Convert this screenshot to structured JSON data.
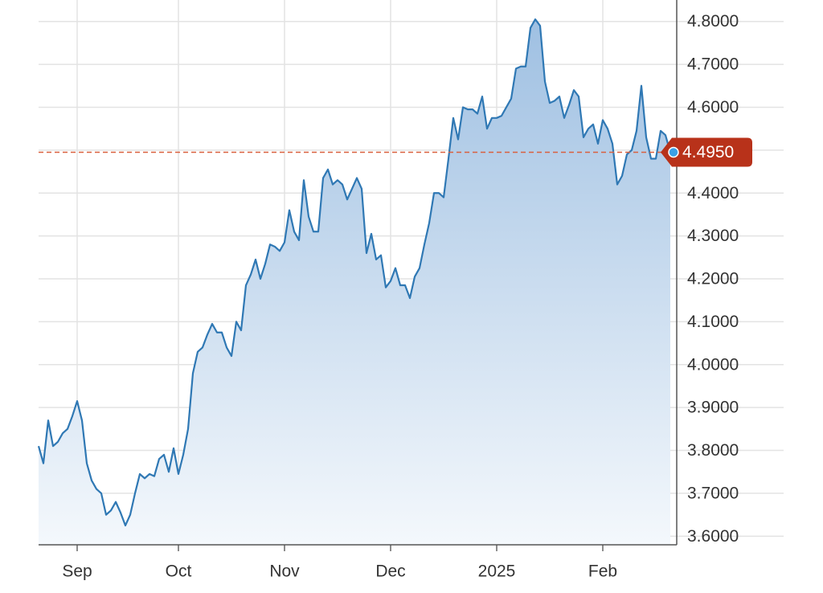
{
  "chart_data": {
    "type": "area",
    "categories": [
      null,
      null,
      null,
      null,
      null,
      null,
      null,
      null,
      "Sep",
      null,
      null,
      null,
      null,
      null,
      null,
      null,
      null,
      null,
      null,
      null,
      null,
      null,
      null,
      null,
      null,
      null,
      null,
      null,
      null,
      "Oct",
      null,
      null,
      null,
      null,
      null,
      null,
      null,
      null,
      null,
      null,
      null,
      null,
      null,
      null,
      null,
      null,
      null,
      null,
      null,
      null,
      null,
      "Nov",
      null,
      null,
      null,
      null,
      null,
      null,
      null,
      null,
      null,
      null,
      null,
      null,
      null,
      null,
      null,
      null,
      null,
      null,
      null,
      null,
      null,
      "Dec",
      null,
      null,
      null,
      null,
      null,
      null,
      null,
      null,
      null,
      null,
      null,
      null,
      null,
      null,
      null,
      null,
      null,
      null,
      null,
      null,
      null,
      "2025",
      null,
      null,
      null,
      null,
      null,
      null,
      null,
      null,
      null,
      null,
      null,
      null,
      null,
      null,
      null,
      null,
      null,
      null,
      null,
      null,
      null,
      "Feb",
      null,
      null,
      null,
      null,
      null,
      null,
      null,
      null,
      null,
      null,
      null,
      null,
      null,
      null
    ],
    "series": [
      {
        "color": "#2f78b4",
        "values": [
          3.81,
          3.77,
          3.87,
          3.81,
          3.82,
          3.84,
          3.85,
          3.88,
          3.915,
          3.87,
          3.77,
          3.73,
          3.71,
          3.7,
          3.65,
          3.66,
          3.68,
          3.655,
          3.625,
          3.65,
          3.7,
          3.745,
          3.735,
          3.745,
          3.74,
          3.78,
          3.79,
          3.75,
          3.805,
          3.745,
          3.79,
          3.85,
          3.98,
          4.03,
          4.04,
          4.07,
          4.095,
          4.075,
          4.075,
          4.04,
          4.02,
          4.1,
          4.08,
          4.185,
          4.21,
          4.245,
          4.2,
          4.235,
          4.28,
          4.275,
          4.265,
          4.285,
          4.36,
          4.31,
          4.29,
          4.43,
          4.345,
          4.31,
          4.31,
          4.435,
          4.455,
          4.42,
          4.43,
          4.42,
          4.385,
          4.41,
          4.435,
          4.41,
          4.26,
          4.305,
          4.245,
          4.255,
          4.18,
          4.195,
          4.225,
          4.185,
          4.185,
          4.155,
          4.205,
          4.225,
          4.28,
          4.33,
          4.4,
          4.4,
          4.39,
          4.48,
          4.575,
          4.525,
          4.6,
          4.595,
          4.595,
          4.585,
          4.625,
          4.55,
          4.575,
          4.575,
          4.58,
          4.6,
          4.62,
          4.69,
          4.695,
          4.695,
          4.785,
          4.805,
          4.79,
          4.66,
          4.61,
          4.615,
          4.625,
          4.575,
          4.605,
          4.64,
          4.625,
          4.53,
          4.55,
          4.56,
          4.515,
          4.57,
          4.55,
          4.515,
          4.42,
          4.44,
          4.49,
          4.5,
          4.545,
          4.65,
          4.53,
          4.48,
          4.48,
          4.545,
          4.535,
          4.495
        ]
      }
    ],
    "ylim": [
      3.58,
      4.85
    ],
    "yticks": [
      {
        "value": 3.6,
        "label": "3.6000"
      },
      {
        "value": 3.7,
        "label": "3.7000"
      },
      {
        "value": 3.8,
        "label": "3.8000"
      },
      {
        "value": 3.9,
        "label": "3.9000"
      },
      {
        "value": 4.0,
        "label": "4.0000"
      },
      {
        "value": 4.1,
        "label": "4.1000"
      },
      {
        "value": 4.2,
        "label": "4.2000"
      },
      {
        "value": 4.3,
        "label": "4.3000"
      },
      {
        "value": 4.4,
        "label": "4.4000"
      },
      {
        "value": 4.5,
        "label": "4.5000"
      },
      {
        "value": 4.6,
        "label": "4.6000"
      },
      {
        "value": 4.7,
        "label": "4.7000"
      },
      {
        "value": 4.8,
        "label": "4.8000"
      }
    ],
    "current_price": {
      "value": 4.495,
      "label": "4.4950",
      "color": "#b8321a"
    },
    "grid": true
  }
}
